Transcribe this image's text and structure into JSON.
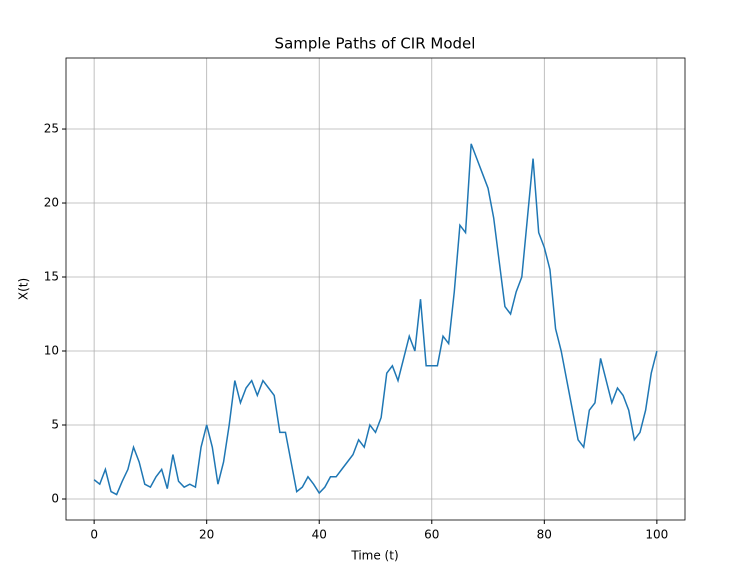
{
  "chart_data": {
    "type": "line",
    "title": "Sample Paths of CIR Model",
    "x_label": "Time (t)",
    "y_label": "X(t)",
    "x": [
      0,
      1,
      2,
      3,
      4,
      5,
      6,
      7,
      8,
      9,
      10,
      11,
      12,
      13,
      14,
      15,
      16,
      17,
      18,
      19,
      20,
      21,
      22,
      23,
      24,
      25,
      26,
      27,
      28,
      29,
      30,
      31,
      32,
      33,
      34,
      35,
      36,
      37,
      38,
      39,
      40,
      41,
      42,
      43,
      44,
      45,
      46,
      47,
      48,
      49,
      50,
      51,
      52,
      53,
      54,
      55,
      56,
      57,
      58,
      59,
      60,
      61,
      62,
      63,
      64,
      65,
      66,
      67,
      68,
      69,
      70,
      71,
      72,
      73,
      74,
      75,
      76,
      77,
      78,
      79,
      80,
      81,
      82,
      83,
      84,
      85,
      86,
      87,
      88,
      89,
      90,
      91,
      92,
      93,
      94,
      95,
      96,
      97,
      98,
      99,
      100
    ],
    "values": [
      1.3,
      1.0,
      2.0,
      0.5,
      0.3,
      1.2,
      2.0,
      3.5,
      2.5,
      1.0,
      0.8,
      1.5,
      2.0,
      0.7,
      3.0,
      1.2,
      0.8,
      1.0,
      0.8,
      3.5,
      5.0,
      3.5,
      1.0,
      2.5,
      5.0,
      8.0,
      6.5,
      7.5,
      8.0,
      7.0,
      8.0,
      7.5,
      7.0,
      4.5,
      4.5,
      2.5,
      0.5,
      0.8,
      1.5,
      1.0,
      0.4,
      0.8,
      1.5,
      1.5,
      2.0,
      2.5,
      3.0,
      4.0,
      3.5,
      5.0,
      4.5,
      5.5,
      8.5,
      9.0,
      8.0,
      9.5,
      11.0,
      10.0,
      13.5,
      9.0,
      9.0,
      9.0,
      11.0,
      10.5,
      14.0,
      18.5,
      18.0,
      24.0,
      23.0,
      22.0,
      21.0,
      19.0,
      16.0,
      13.0,
      12.5,
      14.0,
      15.0,
      19.0,
      23.0,
      18.0,
      17.0,
      15.5,
      11.5,
      10.0,
      8.0,
      6.0,
      4.0,
      3.5,
      6.0,
      6.5,
      9.5,
      8.0,
      6.5,
      7.5,
      7.0,
      6.0,
      4.0,
      4.5,
      6.0,
      8.5,
      10.0
    ],
    "color": "#1f77b4",
    "xlim": [
      -5,
      105
    ],
    "ylim": [
      -1.42,
      29.8
    ],
    "xticks": [
      0,
      20,
      40,
      60,
      80,
      100
    ],
    "yticks": [
      0,
      5,
      10,
      15,
      20,
      25
    ],
    "grid": true
  }
}
